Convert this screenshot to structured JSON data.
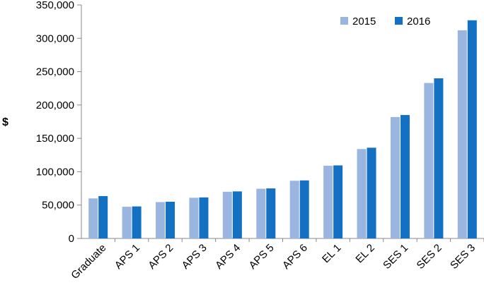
{
  "chart_data": {
    "type": "bar",
    "title": "",
    "xlabel": "",
    "ylabel": "$",
    "ylim": [
      0,
      350000
    ],
    "yticks": [
      0,
      50000,
      100000,
      150000,
      200000,
      250000,
      300000,
      350000
    ],
    "ytick_labels": [
      "0",
      "50,000",
      "100,000",
      "150,000",
      "200,000",
      "250,000",
      "300,000",
      "350,000"
    ],
    "grid": false,
    "legend_position": "top-right",
    "categories": [
      "Graduate",
      "APS 1",
      "APS 2",
      "APS 3",
      "APS 4",
      "APS 5",
      "APS 6",
      "EL 1",
      "EL 2",
      "SES 1",
      "SES 2",
      "SES 3"
    ],
    "series": [
      {
        "name": "2015",
        "color": "#9ab5df",
        "values": [
          60000,
          47500,
          54500,
          61000,
          70000,
          74500,
          86500,
          109000,
          134000,
          182000,
          233000,
          312000
        ]
      },
      {
        "name": "2016",
        "color": "#1470c2",
        "values": [
          63500,
          48000,
          55000,
          61500,
          70500,
          75000,
          87000,
          109500,
          136000,
          185000,
          240000,
          327000
        ]
      }
    ]
  }
}
